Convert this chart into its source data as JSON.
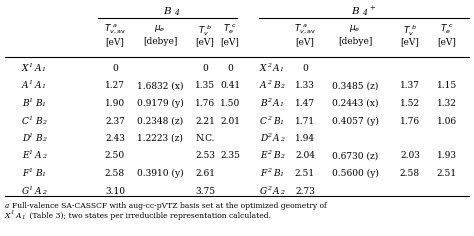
{
  "bg_color": "#ffffff",
  "text_color": "#000000",
  "font_size": 6.5,
  "B4_rows": [
    [
      "X",
      "1",
      "A",
      "1",
      "0",
      "",
      "0",
      "0"
    ],
    [
      "A",
      "1",
      "A",
      "1",
      "1.27",
      "1.6832 (x)",
      "1.35",
      "0.41"
    ],
    [
      "B",
      "1",
      "B",
      "1",
      "1.90",
      "0.9179 (y)",
      "1.76",
      "1.50"
    ],
    [
      "C",
      "1",
      "B",
      "2",
      "2.37",
      "0.2348 (z)",
      "2.21",
      "2.01"
    ],
    [
      "D",
      "1",
      "B",
      "2",
      "2.43",
      "1.2223 (z)",
      "N.C.",
      ""
    ],
    [
      "E",
      "1",
      "A",
      "2",
      "2.50",
      "",
      "2.53",
      "2.35"
    ],
    [
      "F",
      "1",
      "B",
      "1",
      "2.58",
      "0.3910 (y)",
      "2.61",
      ""
    ],
    [
      "G",
      "1",
      "A",
      "2",
      "3.10",
      "",
      "3.75",
      ""
    ]
  ],
  "B4p_rows": [
    [
      "X",
      "2",
      "A",
      "1",
      "0",
      "",
      "",
      ""
    ],
    [
      "A",
      "2",
      "B",
      "2",
      "1.33",
      "0.3485 (z)",
      "1.37",
      "1.15"
    ],
    [
      "B",
      "2",
      "A",
      "1",
      "1.47",
      "0.2443 (x)",
      "1.52",
      "1.32"
    ],
    [
      "C",
      "2",
      "B",
      "1",
      "1.71",
      "0.4057 (y)",
      "1.76",
      "1.06"
    ],
    [
      "D",
      "2",
      "A",
      "2",
      "1.94",
      "",
      "",
      ""
    ],
    [
      "E",
      "2",
      "B",
      "2",
      "2.04",
      "0.6730 (z)",
      "2.03",
      "1.93"
    ],
    [
      "F",
      "2",
      "B",
      "1",
      "2.51",
      "0.5600 (y)",
      "2.58",
      "2.51"
    ],
    [
      "G",
      "2",
      "A",
      "2",
      "2.73",
      "",
      "",
      ""
    ]
  ],
  "footnote1": "a Full-valence SA-CASSCF with aug-cc-pVTZ basis set at the optimized geometry of",
  "footnote2": "X  1A1 (Table 3); two states per irreducible representation calculated."
}
